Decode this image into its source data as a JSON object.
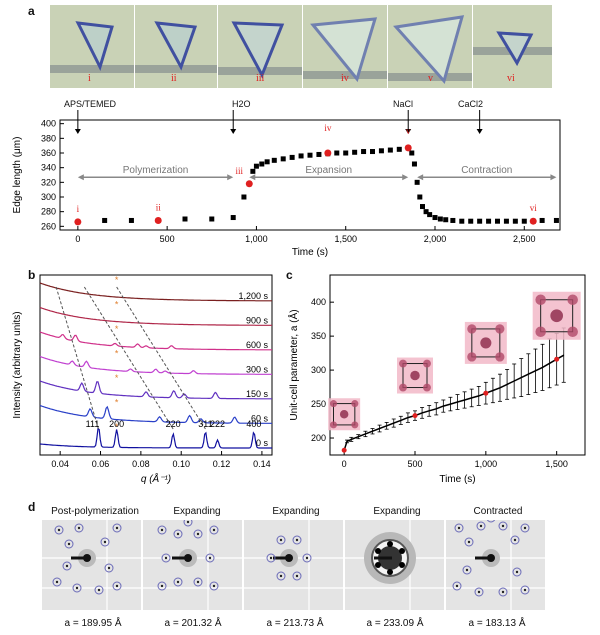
{
  "panel_letters": {
    "a": "a",
    "b": "b",
    "c": "c",
    "d": "d"
  },
  "panel_a": {
    "thumbnails": [
      "i",
      "ii",
      "iii",
      "iv",
      "v",
      "vi"
    ],
    "events": [
      "APS/TEMED",
      "H2O",
      "NaCl",
      "CaCl2"
    ],
    "phases": [
      "Polymerization",
      "Expansion",
      "Contraction"
    ],
    "point_labels": [
      "i",
      "ii",
      "iii",
      "iv",
      "v",
      "vi"
    ]
  },
  "panel_b": {
    "time_labels": [
      "1,200 s",
      "900 s",
      "600 s",
      "300 s",
      "150 s",
      "60 s",
      "0 s"
    ],
    "peak_labels": [
      "111",
      "200",
      "220",
      "311",
      "222",
      "400"
    ]
  },
  "panel_d": {
    "labels": [
      "Post-polymerization",
      "Expanding",
      "Expanding",
      "Expanding",
      "Contracted"
    ],
    "a_values": [
      "a = 189.95 Å",
      "a = 201.32 Å",
      "a = 213.73 Å",
      "a = 233.09 Å",
      "a = 183.13 Å"
    ]
  },
  "chart_data": [
    {
      "type": "scatter",
      "xlabel": "Time (s)",
      "ylabel": "Edge length (μm)",
      "xlim": [
        -100,
        2700
      ],
      "ylim": [
        255,
        405
      ],
      "xticks": [
        0,
        500,
        1000,
        1500,
        2000,
        2500
      ],
      "xtick_labels": [
        "0",
        "500",
        "1,000",
        "1,500",
        "2,000",
        "2,500"
      ],
      "yticks": [
        260,
        280,
        300,
        320,
        340,
        360,
        380,
        400
      ],
      "series": [
        {
          "x": [
            0,
            150,
            300,
            450,
            600,
            750,
            870,
            930,
            960,
            980,
            1000,
            1030,
            1060,
            1100,
            1150,
            1200,
            1250,
            1300,
            1350,
            1400,
            1450,
            1500,
            1550,
            1600,
            1650,
            1700,
            1750,
            1800,
            1850,
            1870,
            1885,
            1900,
            1915,
            1930,
            1950,
            1970,
            2000,
            2030,
            2060,
            2100,
            2150,
            2200,
            2250,
            2300,
            2350,
            2400,
            2450,
            2500,
            2550,
            2600,
            2680
          ],
          "y": [
            266,
            268,
            268,
            268,
            270,
            270,
            272,
            300,
            318,
            335,
            342,
            345,
            348,
            350,
            352,
            354,
            356,
            357,
            358,
            359,
            360,
            360,
            361,
            362,
            362,
            363,
            364,
            365,
            367,
            360,
            345,
            320,
            300,
            287,
            280,
            276,
            272,
            270,
            269,
            268,
            267,
            267,
            267,
            267,
            267,
            267,
            267,
            267,
            267,
            268,
            268
          ]
        }
      ],
      "highlighted": [
        {
          "label": "i",
          "x": 0,
          "y": 266
        },
        {
          "label": "ii",
          "x": 450,
          "y": 268
        },
        {
          "label": "iii",
          "x": 960,
          "y": 318
        },
        {
          "label": "iv",
          "x": 1400,
          "y": 360
        },
        {
          "label": "v",
          "x": 1850,
          "y": 367
        },
        {
          "label": "vi",
          "x": 2550,
          "y": 267
        }
      ],
      "events": [
        {
          "label": "APS/TEMED",
          "x": 0
        },
        {
          "label": "H2O",
          "x": 870
        },
        {
          "label": "NaCl",
          "x": 1850
        },
        {
          "label": "CaCl2",
          "x": 2250
        }
      ]
    },
    {
      "type": "line",
      "xlabel": "q (Å⁻¹)",
      "ylabel": "Intensity (arbitrary units)",
      "xlim": [
        0.03,
        0.145
      ],
      "xticks": [
        0.04,
        0.06,
        0.08,
        0.1,
        0.12,
        0.14
      ],
      "xtick_labels": [
        "0.04",
        "0.06",
        "0.08",
        "0.10",
        "0.12",
        "0.14"
      ],
      "series": [
        {
          "name": "1,200 s",
          "color": "#7a1f1f"
        },
        {
          "name": "900 s",
          "color": "#b0284a"
        },
        {
          "name": "600 s",
          "color": "#d0308a"
        },
        {
          "name": "300 s",
          "color": "#c040d0"
        },
        {
          "name": "150 s",
          "color": "#6030c0"
        },
        {
          "name": "60 s",
          "color": "#2a40c8"
        },
        {
          "name": "0 s",
          "color": "#1010a0"
        }
      ],
      "peaks_q": [
        0.059,
        0.068,
        0.096,
        0.112,
        0.118,
        0.136
      ],
      "peak_labels": [
        "111",
        "200",
        "220",
        "311",
        "222",
        "400"
      ]
    },
    {
      "type": "scatter",
      "xlabel": "Time (s)",
      "ylabel": "Unit-cell parameter, a (Å)",
      "xlim": [
        -100,
        1700
      ],
      "ylim": [
        175,
        440
      ],
      "xticks": [
        0,
        500,
        1000,
        1500
      ],
      "xtick_labels": [
        "0",
        "500",
        "1,000",
        "1,500"
      ],
      "yticks": [
        200,
        250,
        300,
        350,
        400
      ],
      "series": [
        {
          "x": [
            0,
            20,
            50,
            100,
            150,
            200,
            250,
            300,
            350,
            400,
            450,
            500,
            550,
            600,
            650,
            700,
            750,
            800,
            850,
            900,
            950,
            1000,
            1050,
            1100,
            1150,
            1200,
            1250,
            1300,
            1350,
            1400,
            1450,
            1500,
            1550
          ],
          "y": [
            182,
            195,
            198,
            202,
            206,
            210,
            214,
            218,
            222,
            226,
            230,
            233,
            237,
            240,
            243,
            247,
            250,
            253,
            256,
            259,
            262,
            266,
            270,
            274,
            279,
            284,
            289,
            294,
            299,
            304,
            310,
            316,
            322
          ],
          "err": [
            1,
            2,
            3,
            3,
            4,
            4,
            5,
            5,
            6,
            6,
            7,
            7,
            8,
            8,
            9,
            9,
            10,
            11,
            12,
            13,
            14,
            16,
            18,
            20,
            22,
            25,
            28,
            30,
            32,
            34,
            36,
            38,
            40
          ]
        }
      ],
      "red_points": [
        {
          "x": 0,
          "y": 182
        },
        {
          "x": 500,
          "y": 233
        },
        {
          "x": 1000,
          "y": 266
        },
        {
          "x": 1500,
          "y": 316
        }
      ]
    }
  ]
}
